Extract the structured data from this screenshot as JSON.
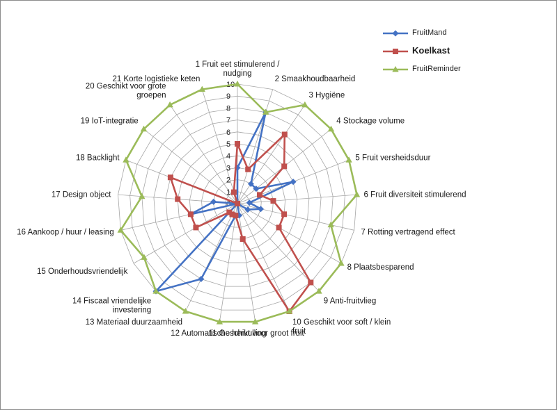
{
  "chart_data": {
    "type": "radar",
    "categories": [
      "1 Fruit eet stimulerend /\nnudging",
      "2 Smaakhoudbaarheid",
      "3 Hygiëne",
      "4 Stockage volume",
      "5 Fruit versheidsduur",
      "6 Fruit diversiteit stimulerend",
      "7 Rotting vertragend effect",
      "8 Plaatsbesparend",
      "9 Anti-fruitvlieg",
      "10 Geschikt voor soft / klein\nfruit",
      "11 Geschikt voor groot fruit",
      "12 Automatische hervulling",
      "13 Materiaal duurzaamheid",
      "14 Fiscaal vriendelijke\ninvestering",
      "15 Onderhoudsvriendelijk",
      "16 Aankoop / huur / leasing",
      "17 Design object",
      "18 Backlight",
      "19 IoT-integratie",
      "20 Geschikt voor grote\ngroepen",
      "21 Korte logistieke keten"
    ],
    "rmin": 0,
    "rmax": 10,
    "ticks": [
      "0",
      "1",
      "2",
      "3",
      "4",
      "5",
      "6",
      "7",
      "8",
      "9",
      "10"
    ],
    "grid": true,
    "legend_position": "top-right",
    "series": [
      {
        "name": "FruitMand",
        "color": "#4472c4",
        "marker": "diamond",
        "values": [
          3,
          8,
          2,
          2,
          5,
          1,
          2,
          1,
          0,
          0,
          1,
          1,
          7,
          10,
          0,
          4,
          2,
          0,
          0,
          0,
          0
        ]
      },
      {
        "name": "Koelkast",
        "color": "#c0504d",
        "marker": "square",
        "values": [
          5,
          3,
          7,
          5,
          2,
          3,
          4,
          4,
          9,
          10,
          3,
          1,
          1,
          1,
          4,
          4,
          5,
          6,
          0,
          0,
          1
        ]
      },
      {
        "name": "FruitReminder",
        "color": "#9bbb59",
        "marker": "triangle",
        "values": [
          10,
          8,
          10,
          10,
          10,
          10,
          8,
          10,
          10,
          10,
          10,
          10,
          10,
          10,
          9,
          10,
          8,
          10,
          10,
          10,
          10
        ]
      }
    ]
  }
}
